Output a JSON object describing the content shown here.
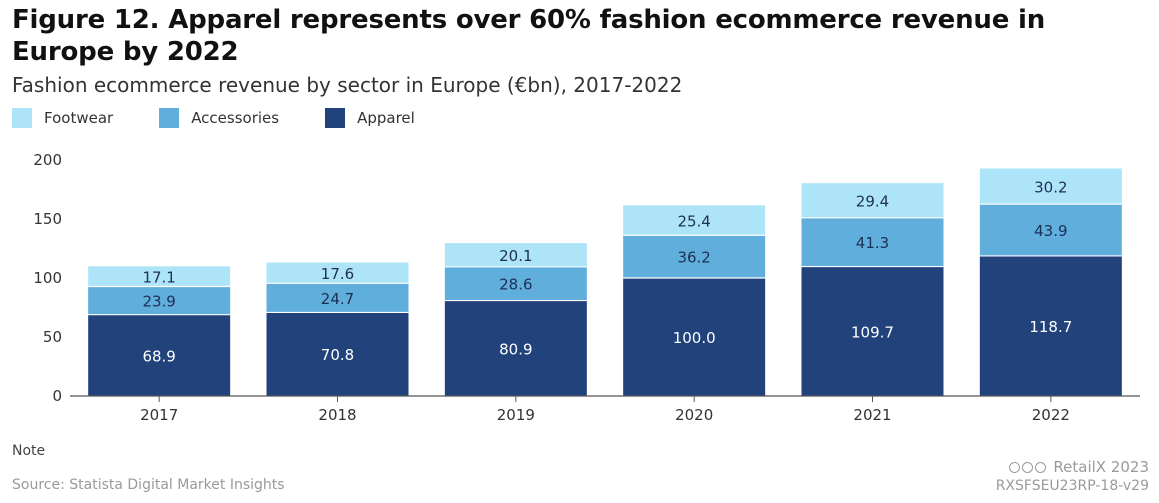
{
  "title": "Figure 12. Apparel represents over 60% fashion ecommerce revenue in Europe by 2022",
  "subtitle": "Fashion ecommerce revenue by sector in Europe (€bn), 2017-2022",
  "legend": [
    {
      "label": "Footwear",
      "color": "#aee4f8"
    },
    {
      "label": "Accessories",
      "color": "#60aedb"
    },
    {
      "label": "Apparel",
      "color": "#22427c"
    }
  ],
  "note": "Note",
  "source": "Source: Statista Digital Market Insights",
  "brand": "RetailX 2023",
  "code": "RXSFSEU23RP-18-v29",
  "chart_data": {
    "type": "bar",
    "stacked": true,
    "categories": [
      "2017",
      "2018",
      "2019",
      "2020",
      "2021",
      "2022"
    ],
    "series": [
      {
        "name": "Apparel",
        "color": "#22427c",
        "values": [
          68.9,
          70.8,
          80.9,
          100.0,
          109.7,
          118.7
        ]
      },
      {
        "name": "Accessories",
        "color": "#60aedb",
        "values": [
          23.9,
          24.7,
          28.6,
          36.2,
          41.3,
          43.9
        ]
      },
      {
        "name": "Footwear",
        "color": "#aee4f8",
        "values": [
          17.1,
          17.6,
          20.1,
          25.4,
          29.4,
          30.2
        ]
      }
    ],
    "ylim": [
      0,
      200
    ],
    "yticks": [
      0,
      50,
      100,
      150,
      200
    ],
    "grid": false,
    "legend_position": "top-left"
  }
}
